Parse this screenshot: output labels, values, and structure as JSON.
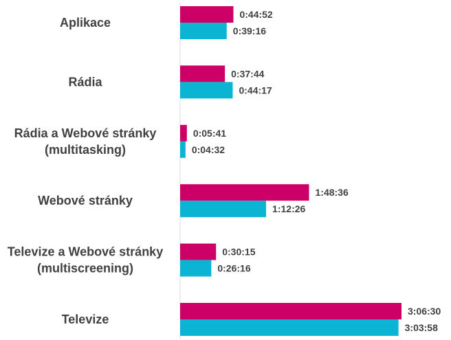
{
  "chart_data": {
    "type": "bar",
    "orientation": "horizontal",
    "unit": "seconds",
    "categories": [
      [
        "Aplikace"
      ],
      [
        "Rádia"
      ],
      [
        "Rádia a Webové stránky",
        "(multitasking)"
      ],
      [
        "Webové stránky"
      ],
      [
        "Televize a Webové stránky",
        "(multiscreening)"
      ],
      [
        "Televize"
      ]
    ],
    "series": [
      {
        "color": "#cc0066",
        "values": [
          2692,
          2264,
          341,
          6516,
          1815,
          11190
        ],
        "labels": [
          "0:44:52",
          "0:37:44",
          "0:05:41",
          "1:48:36",
          "0:30:15",
          "3:06:30"
        ]
      },
      {
        "color": "#0ab4d2",
        "values": [
          2356,
          2657,
          272,
          4346,
          1576,
          11038
        ],
        "labels": [
          "0:39:16",
          "0:44:17",
          "0:04:32",
          "1:12:26",
          "0:26:16",
          "3:03:58"
        ]
      }
    ],
    "xlim": [
      0,
      11190
    ],
    "grid": false,
    "legend": "none"
  }
}
